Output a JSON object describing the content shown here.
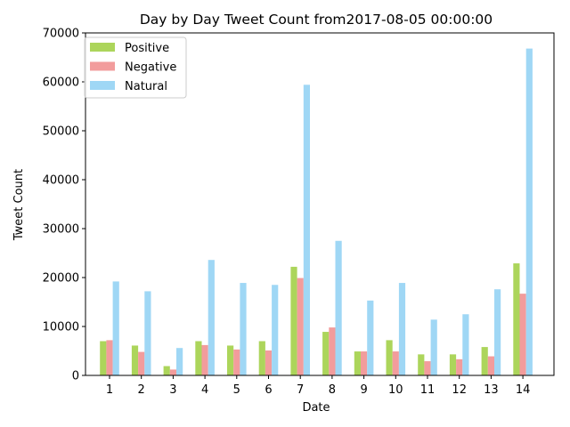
{
  "chart_data": {
    "type": "bar",
    "title": "Day by Day Tweet Count from2017-08-05 00:00:00",
    "xlabel": "Date",
    "ylabel": "Tweet Count",
    "categories": [
      "1",
      "2",
      "3",
      "4",
      "5",
      "6",
      "7",
      "8",
      "9",
      "10",
      "11",
      "12",
      "13",
      "14"
    ],
    "ylim": [
      0,
      70000
    ],
    "yticks": [
      0,
      10000,
      20000,
      30000,
      40000,
      50000,
      60000,
      70000
    ],
    "grid": false,
    "legend_position": "top-left",
    "series": [
      {
        "name": "Positive",
        "color": "#acd55b",
        "values": [
          7000,
          6100,
          1900,
          7000,
          6100,
          7000,
          22200,
          8900,
          4900,
          7200,
          4300,
          4300,
          5800,
          22900
        ]
      },
      {
        "name": "Negative",
        "color": "#f29c9c",
        "values": [
          7200,
          4800,
          1200,
          6200,
          5300,
          5100,
          19900,
          9800,
          4900,
          4900,
          2900,
          3300,
          3900,
          16700
        ]
      },
      {
        "name": "Natural",
        "color": "#9fd7f5",
        "values": [
          19200,
          17200,
          5600,
          23600,
          18900,
          18500,
          59400,
          27500,
          15300,
          18900,
          11400,
          12500,
          17600,
          66800
        ]
      }
    ]
  }
}
